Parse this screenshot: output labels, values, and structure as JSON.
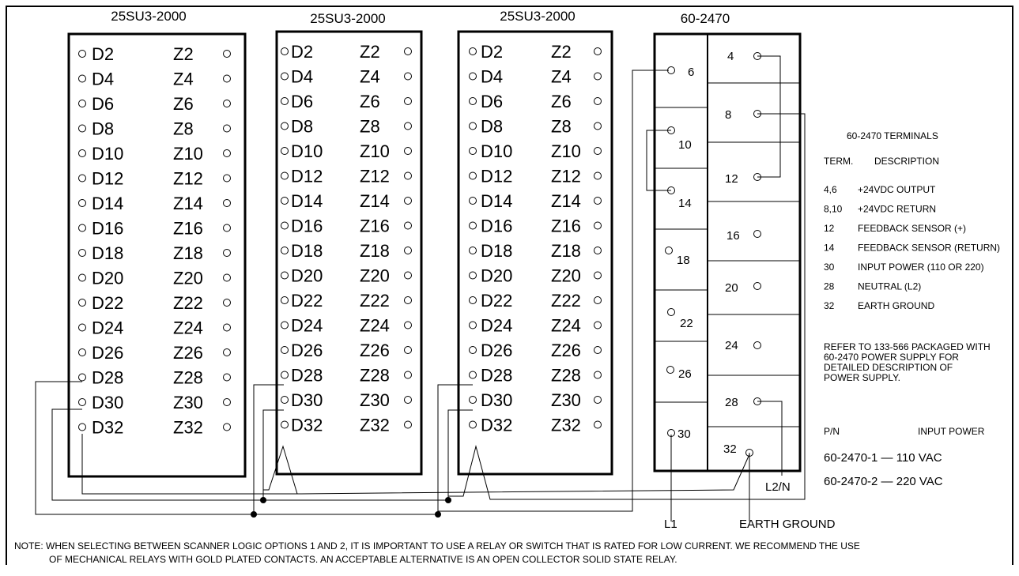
{
  "modules": [
    {
      "title": "25SU3-2000"
    },
    {
      "title": "25SU3-2000"
    },
    {
      "title": "25SU3-2000"
    }
  ],
  "d_labels": [
    "D2",
    "D4",
    "D6",
    "D8",
    "D10",
    "D12",
    "D14",
    "D16",
    "D18",
    "D20",
    "D22",
    "D24",
    "D26",
    "D28",
    "D30",
    "D32"
  ],
  "z_labels": [
    "Z2",
    "Z4",
    "Z6",
    "Z8",
    "Z10",
    "Z12",
    "Z14",
    "Z16",
    "Z18",
    "Z20",
    "Z22",
    "Z24",
    "Z26",
    "Z28",
    "Z30",
    "Z32"
  ],
  "power_supply": {
    "title": "60-2470",
    "left_terminals": [
      "6",
      "10",
      "14",
      "18",
      "22",
      "26",
      "30"
    ],
    "right_terminals": [
      "4",
      "8",
      "12",
      "16",
      "20",
      "24",
      "28",
      "32"
    ]
  },
  "wire_labels": {
    "l1": "L1",
    "l2n": "L2/N",
    "earth": "EARTH GROUND"
  },
  "legend": {
    "title": "60-2470 TERMINALS",
    "col_term": "TERM.",
    "col_desc": "DESCRIPTION",
    "rows": [
      {
        "term": "4,6",
        "desc": "+24VDC OUTPUT"
      },
      {
        "term": "8,10",
        "desc": "+24VDC RETURN"
      },
      {
        "term": "12",
        "desc": "FEEDBACK SENSOR (+)"
      },
      {
        "term": "14",
        "desc": "FEEDBACK SENSOR (RETURN)"
      },
      {
        "term": "30",
        "desc": "INPUT POWER (110 OR 220)"
      },
      {
        "term": "28",
        "desc": "NEUTRAL (L2)"
      },
      {
        "term": "32",
        "desc": "EARTH GROUND"
      }
    ],
    "refer": [
      "REFER TO 133-566 PACKAGED WITH",
      "60-2470 POWER SUPPLY FOR",
      "DETAILED DESCRIPTION OF",
      "POWER SUPPLY."
    ],
    "pn_header": "P/N",
    "input_power_header": "INPUT POWER",
    "models": [
      "60-2470-1 — 110 VAC",
      "60-2470-2 — 220 VAC"
    ]
  },
  "note": [
    "NOTE: WHEN SELECTING BETWEEN SCANNER LOGIC OPTIONS 1 AND 2, IT IS IMPORTANT TO USE A RELAY OR SWITCH THAT IS RATED FOR LOW CURRENT. WE RECOMMEND THE USE",
    "OF MECHANICAL RELAYS WITH GOLD PLATED CONTACTS. AN ACCEPTABLE ALTERNATIVE IS AN OPEN COLLECTOR SOLID STATE RELAY."
  ]
}
